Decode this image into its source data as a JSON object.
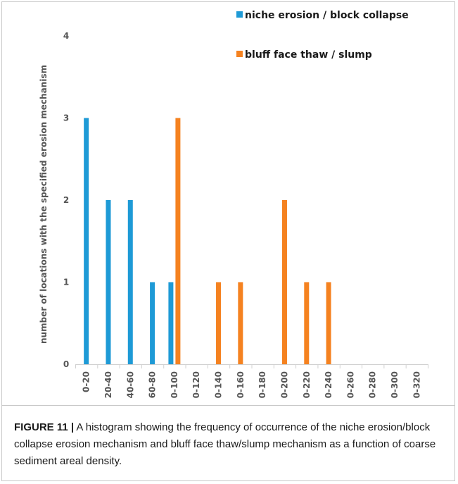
{
  "chart_data": {
    "type": "bar",
    "title": "",
    "xlabel": "",
    "ylabel": "number of locations with the specified erosion mechanism",
    "categories": [
      "0-20",
      "20-40",
      "40-60",
      "60-80",
      "0-100",
      "0-120",
      "0-140",
      "0-160",
      "0-180",
      "0-200",
      "0-220",
      "0-240",
      "0-260",
      "0-280",
      "0-300",
      "0-320"
    ],
    "series": [
      {
        "name": "niche erosion / block collapse",
        "color": "#1e9ad6",
        "values": [
          3,
          2,
          2,
          1,
          1,
          0,
          0,
          0,
          0,
          0,
          0,
          0,
          0,
          0,
          0,
          0
        ]
      },
      {
        "name": "bluff face thaw / slump",
        "color": "#f58220",
        "values": [
          0,
          0,
          0,
          0,
          3,
          0,
          1,
          1,
          0,
          2,
          1,
          1,
          0,
          0,
          0,
          0
        ]
      }
    ],
    "ylim": [
      0,
      4
    ],
    "yticks": [
      0,
      1,
      2,
      3,
      4
    ],
    "grid": false,
    "legend": "top-right"
  },
  "caption": {
    "label": "FIGURE 11 |",
    "text": " A histogram showing the frequency of occurrence of the niche erosion/block collapse erosion mechanism and bluff face thaw/slump mechanism as a function of coarse sediment areal density."
  }
}
